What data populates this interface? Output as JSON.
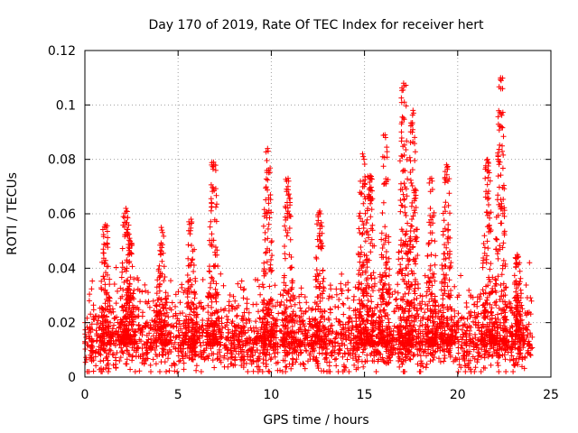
{
  "chart_data": {
    "type": "scatter",
    "title": "Day 170 of 2019, Rate Of TEC Index for receiver hert",
    "xlabel": "GPS time / hours",
    "ylabel": "ROTI / TECUs",
    "xlim": [
      0,
      25
    ],
    "ylim": [
      0,
      0.12
    ],
    "xticks": [
      0,
      5,
      10,
      15,
      20,
      25
    ],
    "xtick_labels": [
      "0",
      "5",
      "10",
      "15",
      "20",
      "25"
    ],
    "yticks": [
      0,
      0.02,
      0.04,
      0.06,
      0.08,
      0.1,
      0.12
    ],
    "ytick_labels": [
      "0",
      "0.02",
      "0.04",
      "0.06",
      "0.08",
      "0.1",
      "0.12"
    ],
    "grid": true,
    "marker": "+",
    "color": "#ff0000",
    "series": [
      {
        "name": "ROTI",
        "x_range": [
          0,
          24
        ],
        "baseline": 0.012,
        "spread": 0.008,
        "peaks": [
          {
            "x": 1.1,
            "y": 0.056
          },
          {
            "x": 2.2,
            "y": 0.062
          },
          {
            "x": 2.4,
            "y": 0.051
          },
          {
            "x": 4.1,
            "y": 0.055
          },
          {
            "x": 5.7,
            "y": 0.058
          },
          {
            "x": 6.9,
            "y": 0.079
          },
          {
            "x": 9.8,
            "y": 0.084
          },
          {
            "x": 10.9,
            "y": 0.073
          },
          {
            "x": 12.6,
            "y": 0.061
          },
          {
            "x": 14.9,
            "y": 0.082
          },
          {
            "x": 15.3,
            "y": 0.074
          },
          {
            "x": 16.1,
            "y": 0.089
          },
          {
            "x": 17.1,
            "y": 0.108
          },
          {
            "x": 17.6,
            "y": 0.098
          },
          {
            "x": 18.6,
            "y": 0.073
          },
          {
            "x": 19.4,
            "y": 0.078
          },
          {
            "x": 21.6,
            "y": 0.08
          },
          {
            "x": 22.3,
            "y": 0.11
          },
          {
            "x": 23.2,
            "y": 0.045
          }
        ]
      }
    ]
  }
}
